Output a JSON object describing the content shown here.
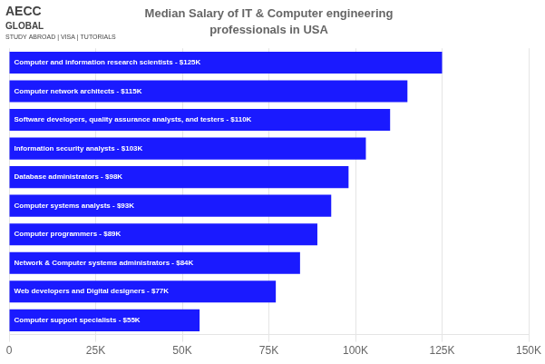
{
  "chart_data": {
    "type": "bar",
    "orientation": "horizontal",
    "title": "Median Salary of IT & Computer engineering",
    "subtitle": "professionals in USA",
    "annotations": [
      "AECC",
      "GLOBAL",
      "STUDY ABROAD | VISA | TUTORIALS"
    ],
    "categories": [
      "Computer and information research scientists - $125K",
      "Computer network architects - $115K",
      "Software developers, quality assurance analysts, and testers - $110K",
      "Information security analysts - $103K",
      "Database administrators - $98K",
      "Computer systems analysts - $93K",
      "Computer programmers - $89K",
      "Network & Computer systems administrators - $84K",
      "Web developers and Digital designers - $77K",
      "Computer support specialists - $55K"
    ],
    "values": [
      125000,
      115000,
      110000,
      103000,
      98000,
      93000,
      89000,
      84000,
      77000,
      55000
    ],
    "color": "#1a1aff",
    "xlim": [
      0,
      150000
    ],
    "xticks": [
      0,
      {
        "value": 25000,
        "label": "25K"
      },
      {
        "value": 50000,
        "label": "50K"
      },
      {
        "value": 75000,
        "label": "75K"
      },
      {
        "value": 100000,
        "label": "100K"
      },
      {
        "value": 125000,
        "label": "125K"
      },
      {
        "value": 150000,
        "label": "150K"
      }
    ],
    "grid": true,
    "tick_labels": "x"
  }
}
